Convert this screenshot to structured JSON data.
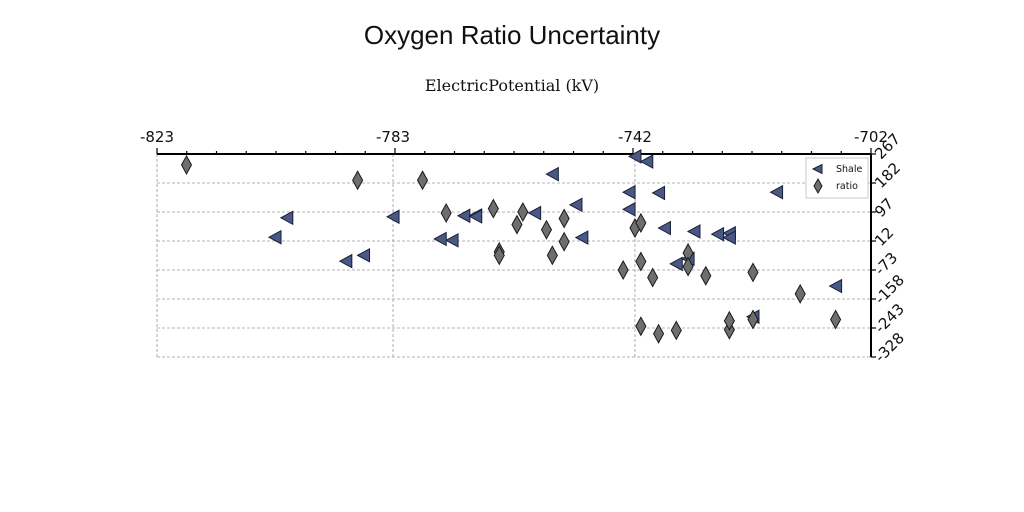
{
  "chart_data": {
    "type": "scatter",
    "title": "Oxygen Ratio Uncertainty",
    "xlabel": "ElectricPotential (kV)",
    "ylabel": "",
    "xlim": [
      -823,
      -702
    ],
    "ylim": [
      -328,
      267
    ],
    "x_ticks": [
      "-823",
      "-783",
      "-742",
      "-702"
    ],
    "y_ticks": [
      "267",
      "182",
      "97",
      "12",
      "-73",
      "-158",
      "-243",
      "-328"
    ],
    "x_axis_position": "top",
    "y_axis_position": "right",
    "grid": "horizontal-dashed",
    "legend_position": "top-right",
    "series": [
      {
        "name": "Shale",
        "marker": "left-triangle",
        "color": "#4a5888",
        "points": [
          [
            -742,
            260
          ],
          [
            -740,
            245
          ],
          [
            -756,
            208
          ],
          [
            -743,
            155
          ],
          [
            -738,
            153
          ],
          [
            -718,
            155
          ],
          [
            -752,
            118
          ],
          [
            -743,
            105
          ],
          [
            -759,
            94
          ],
          [
            -769,
            87
          ],
          [
            -771,
            86
          ],
          [
            -769,
            84
          ],
          [
            -783,
            83
          ],
          [
            -801,
            80
          ],
          [
            -737,
            50
          ],
          [
            -732,
            40
          ],
          [
            -726,
            35
          ],
          [
            -728,
            32
          ],
          [
            -726,
            22
          ],
          [
            -751,
            22
          ],
          [
            -773,
            14
          ],
          [
            -775,
            18
          ],
          [
            -803,
            23
          ],
          [
            -788,
            -30
          ],
          [
            -791,
            -47
          ],
          [
            -733,
            -40
          ],
          [
            -735,
            -55
          ],
          [
            -708,
            -120
          ],
          [
            -722,
            -210
          ]
        ]
      },
      {
        "name": "ratio",
        "marker": "diamond",
        "color": "#6e6e6e",
        "points": [
          [
            -818,
            235
          ],
          [
            -789,
            190
          ],
          [
            -778,
            190
          ],
          [
            -766,
            107
          ],
          [
            -761,
            97
          ],
          [
            -774,
            94
          ],
          [
            -754,
            78
          ],
          [
            -742,
            50
          ],
          [
            -741,
            65
          ],
          [
            -762,
            60
          ],
          [
            -757,
            45
          ],
          [
            -754,
            10
          ],
          [
            -756,
            -30
          ],
          [
            -765,
            -20
          ],
          [
            -765,
            -30
          ],
          [
            -733,
            -23
          ],
          [
            -741,
            -48
          ],
          [
            -733,
            -63
          ],
          [
            -722,
            -80
          ],
          [
            -744,
            -73
          ],
          [
            -739,
            -95
          ],
          [
            -730,
            -90
          ],
          [
            -714,
            -143
          ],
          [
            -741,
            -238
          ],
          [
            -738,
            -260
          ],
          [
            -735,
            -250
          ],
          [
            -722,
            -218
          ],
          [
            -726,
            -248
          ],
          [
            -726,
            -222
          ],
          [
            -708,
            -218
          ]
        ]
      }
    ]
  }
}
